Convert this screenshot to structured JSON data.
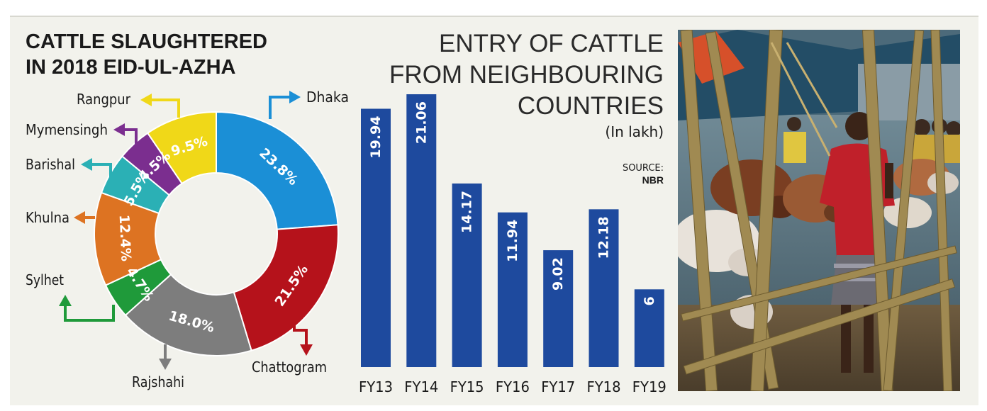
{
  "chart_data": [
    {
      "type": "pie",
      "variant": "donut",
      "title_lines": [
        "CATTLE SLAUGHTERED",
        "IN 2018 EID-UL-AZHA"
      ],
      "slices": [
        {
          "label": "Dhaka",
          "value": 23.8,
          "display": "23.8%",
          "color": "#1b8fd6"
        },
        {
          "label": "Chattogram",
          "value": 21.5,
          "display": "21.5%",
          "color": "#b5121b"
        },
        {
          "label": "Rajshahi",
          "value": 18.0,
          "display": "18.0%",
          "color": "#7d7d7d"
        },
        {
          "label": "Sylhet",
          "value": 4.7,
          "display": "4.7%",
          "color": "#1f9a3a"
        },
        {
          "label": "Khulna",
          "value": 12.4,
          "display": "12.4%",
          "color": "#dd7322"
        },
        {
          "label": "Barishal",
          "value": 5.5,
          "display": "5.5%",
          "color": "#2bb0b5"
        },
        {
          "label": "Mymensingh",
          "value": 4.5,
          "display": "4.5%",
          "color": "#7b2e8f"
        },
        {
          "label": "Rangpur",
          "value": 9.5,
          "display": "9.5%",
          "color": "#f0d818"
        }
      ]
    },
    {
      "type": "bar",
      "title_lines": [
        "ENTRY OF CATTLE",
        "FROM NEIGHBOURING",
        "COUNTRIES"
      ],
      "unit": "(In lakh)",
      "source_label": "SOURCE:",
      "source_value": "NBR",
      "categories": [
        "FY13",
        "FY14",
        "FY15",
        "FY16",
        "FY17",
        "FY18",
        "FY19"
      ],
      "values": [
        19.94,
        21.06,
        14.17,
        11.94,
        9.02,
        12.18,
        6
      ],
      "value_labels": [
        "19.94",
        "21.06",
        "14.17",
        "11.94",
        "9.02",
        "12.18",
        "6"
      ],
      "bar_color": "#1e4a9e",
      "ylim": [
        0,
        21.06
      ]
    }
  ],
  "photo": {
    "colors": {
      "sky": "#5a7a8a",
      "tarp": "#2f5f7a",
      "bamboo": "#a08a52",
      "cow_white": "#e8e2da",
      "cow_brown": "#8a4a2a",
      "shirt": "#c0202a",
      "ground": "#6a5a40"
    }
  }
}
